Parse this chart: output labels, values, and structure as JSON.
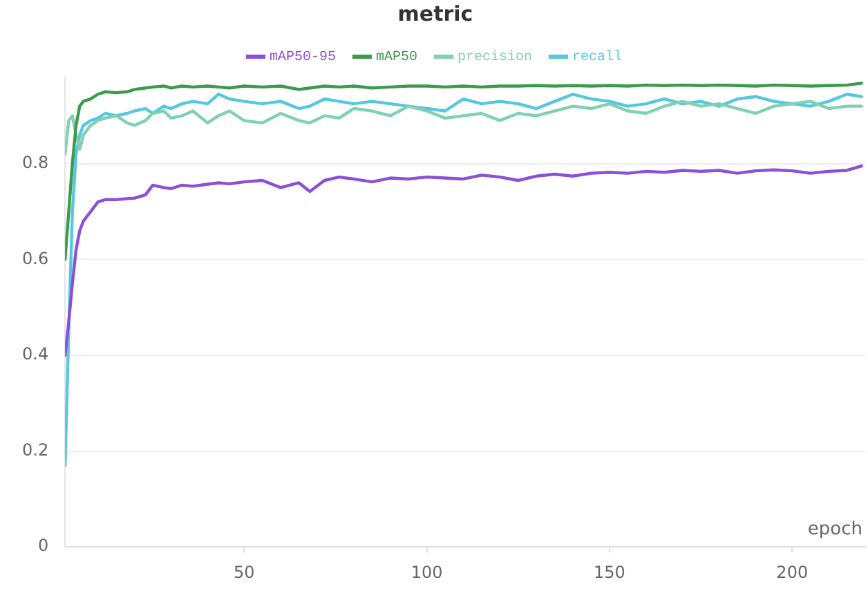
{
  "chart_data": {
    "type": "line",
    "title": "metric",
    "xlabel": "epoch",
    "x": [
      1,
      2,
      3,
      4,
      5,
      6,
      8,
      10,
      12,
      15,
      18,
      20,
      23,
      25,
      28,
      30,
      33,
      36,
      40,
      43,
      46,
      50,
      55,
      60,
      65,
      68,
      72,
      76,
      80,
      85,
      90,
      95,
      100,
      105,
      110,
      115,
      120,
      125,
      130,
      135,
      140,
      145,
      150,
      155,
      160,
      165,
      170,
      175,
      180,
      185,
      190,
      195,
      200,
      205,
      210,
      215,
      219
    ],
    "xlim": [
      1,
      220
    ],
    "ylim": [
      0,
      0.98
    ],
    "xticks": [
      50,
      100,
      150,
      200
    ],
    "yticks": [
      0,
      0.2,
      0.4,
      0.6,
      0.8
    ],
    "grid": "y",
    "legend": "top",
    "marker": "none",
    "line_style": "solid",
    "series": [
      {
        "name": "mAP50-95",
        "color": "#8c4fd8",
        "values": [
          0.4,
          0.47,
          0.55,
          0.62,
          0.66,
          0.68,
          0.7,
          0.72,
          0.725,
          0.725,
          0.727,
          0.728,
          0.735,
          0.755,
          0.75,
          0.748,
          0.755,
          0.753,
          0.757,
          0.76,
          0.758,
          0.762,
          0.765,
          0.75,
          0.76,
          0.742,
          0.765,
          0.772,
          0.768,
          0.762,
          0.77,
          0.768,
          0.772,
          0.77,
          0.768,
          0.776,
          0.772,
          0.765,
          0.774,
          0.778,
          0.774,
          0.78,
          0.782,
          0.78,
          0.784,
          0.782,
          0.786,
          0.784,
          0.786,
          0.78,
          0.785,
          0.787,
          0.785,
          0.78,
          0.784,
          0.786,
          0.795
        ]
      },
      {
        "name": "mAP50",
        "color": "#3b9a4c",
        "values": [
          0.6,
          0.7,
          0.8,
          0.88,
          0.92,
          0.93,
          0.935,
          0.945,
          0.95,
          0.948,
          0.95,
          0.955,
          0.958,
          0.96,
          0.962,
          0.958,
          0.962,
          0.96,
          0.962,
          0.96,
          0.958,
          0.962,
          0.96,
          0.962,
          0.955,
          0.958,
          0.962,
          0.96,
          0.962,
          0.958,
          0.96,
          0.962,
          0.962,
          0.96,
          0.962,
          0.96,
          0.962,
          0.962,
          0.963,
          0.962,
          0.963,
          0.962,
          0.963,
          0.962,
          0.964,
          0.963,
          0.964,
          0.963,
          0.964,
          0.963,
          0.962,
          0.964,
          0.963,
          0.962,
          0.963,
          0.964,
          0.968
        ]
      },
      {
        "name": "precision",
        "color": "#7fd1b2",
        "values": [
          0.82,
          0.89,
          0.9,
          0.86,
          0.83,
          0.86,
          0.88,
          0.89,
          0.895,
          0.9,
          0.885,
          0.88,
          0.89,
          0.905,
          0.91,
          0.895,
          0.9,
          0.91,
          0.885,
          0.9,
          0.91,
          0.89,
          0.885,
          0.905,
          0.89,
          0.885,
          0.9,
          0.895,
          0.915,
          0.91,
          0.9,
          0.92,
          0.91,
          0.895,
          0.9,
          0.905,
          0.89,
          0.905,
          0.9,
          0.91,
          0.92,
          0.915,
          0.925,
          0.91,
          0.905,
          0.92,
          0.93,
          0.92,
          0.925,
          0.915,
          0.905,
          0.92,
          0.925,
          0.93,
          0.915,
          0.92,
          0.92
        ]
      },
      {
        "name": "recall",
        "color": "#55c8e0",
        "values": [
          0.17,
          0.45,
          0.7,
          0.82,
          0.86,
          0.88,
          0.89,
          0.895,
          0.905,
          0.9,
          0.905,
          0.91,
          0.915,
          0.905,
          0.92,
          0.915,
          0.925,
          0.93,
          0.925,
          0.945,
          0.935,
          0.93,
          0.925,
          0.93,
          0.915,
          0.92,
          0.935,
          0.93,
          0.925,
          0.93,
          0.925,
          0.92,
          0.915,
          0.91,
          0.935,
          0.925,
          0.93,
          0.925,
          0.915,
          0.93,
          0.945,
          0.935,
          0.93,
          0.92,
          0.925,
          0.935,
          0.925,
          0.93,
          0.92,
          0.935,
          0.94,
          0.93,
          0.925,
          0.92,
          0.93,
          0.945,
          0.94
        ]
      }
    ]
  }
}
